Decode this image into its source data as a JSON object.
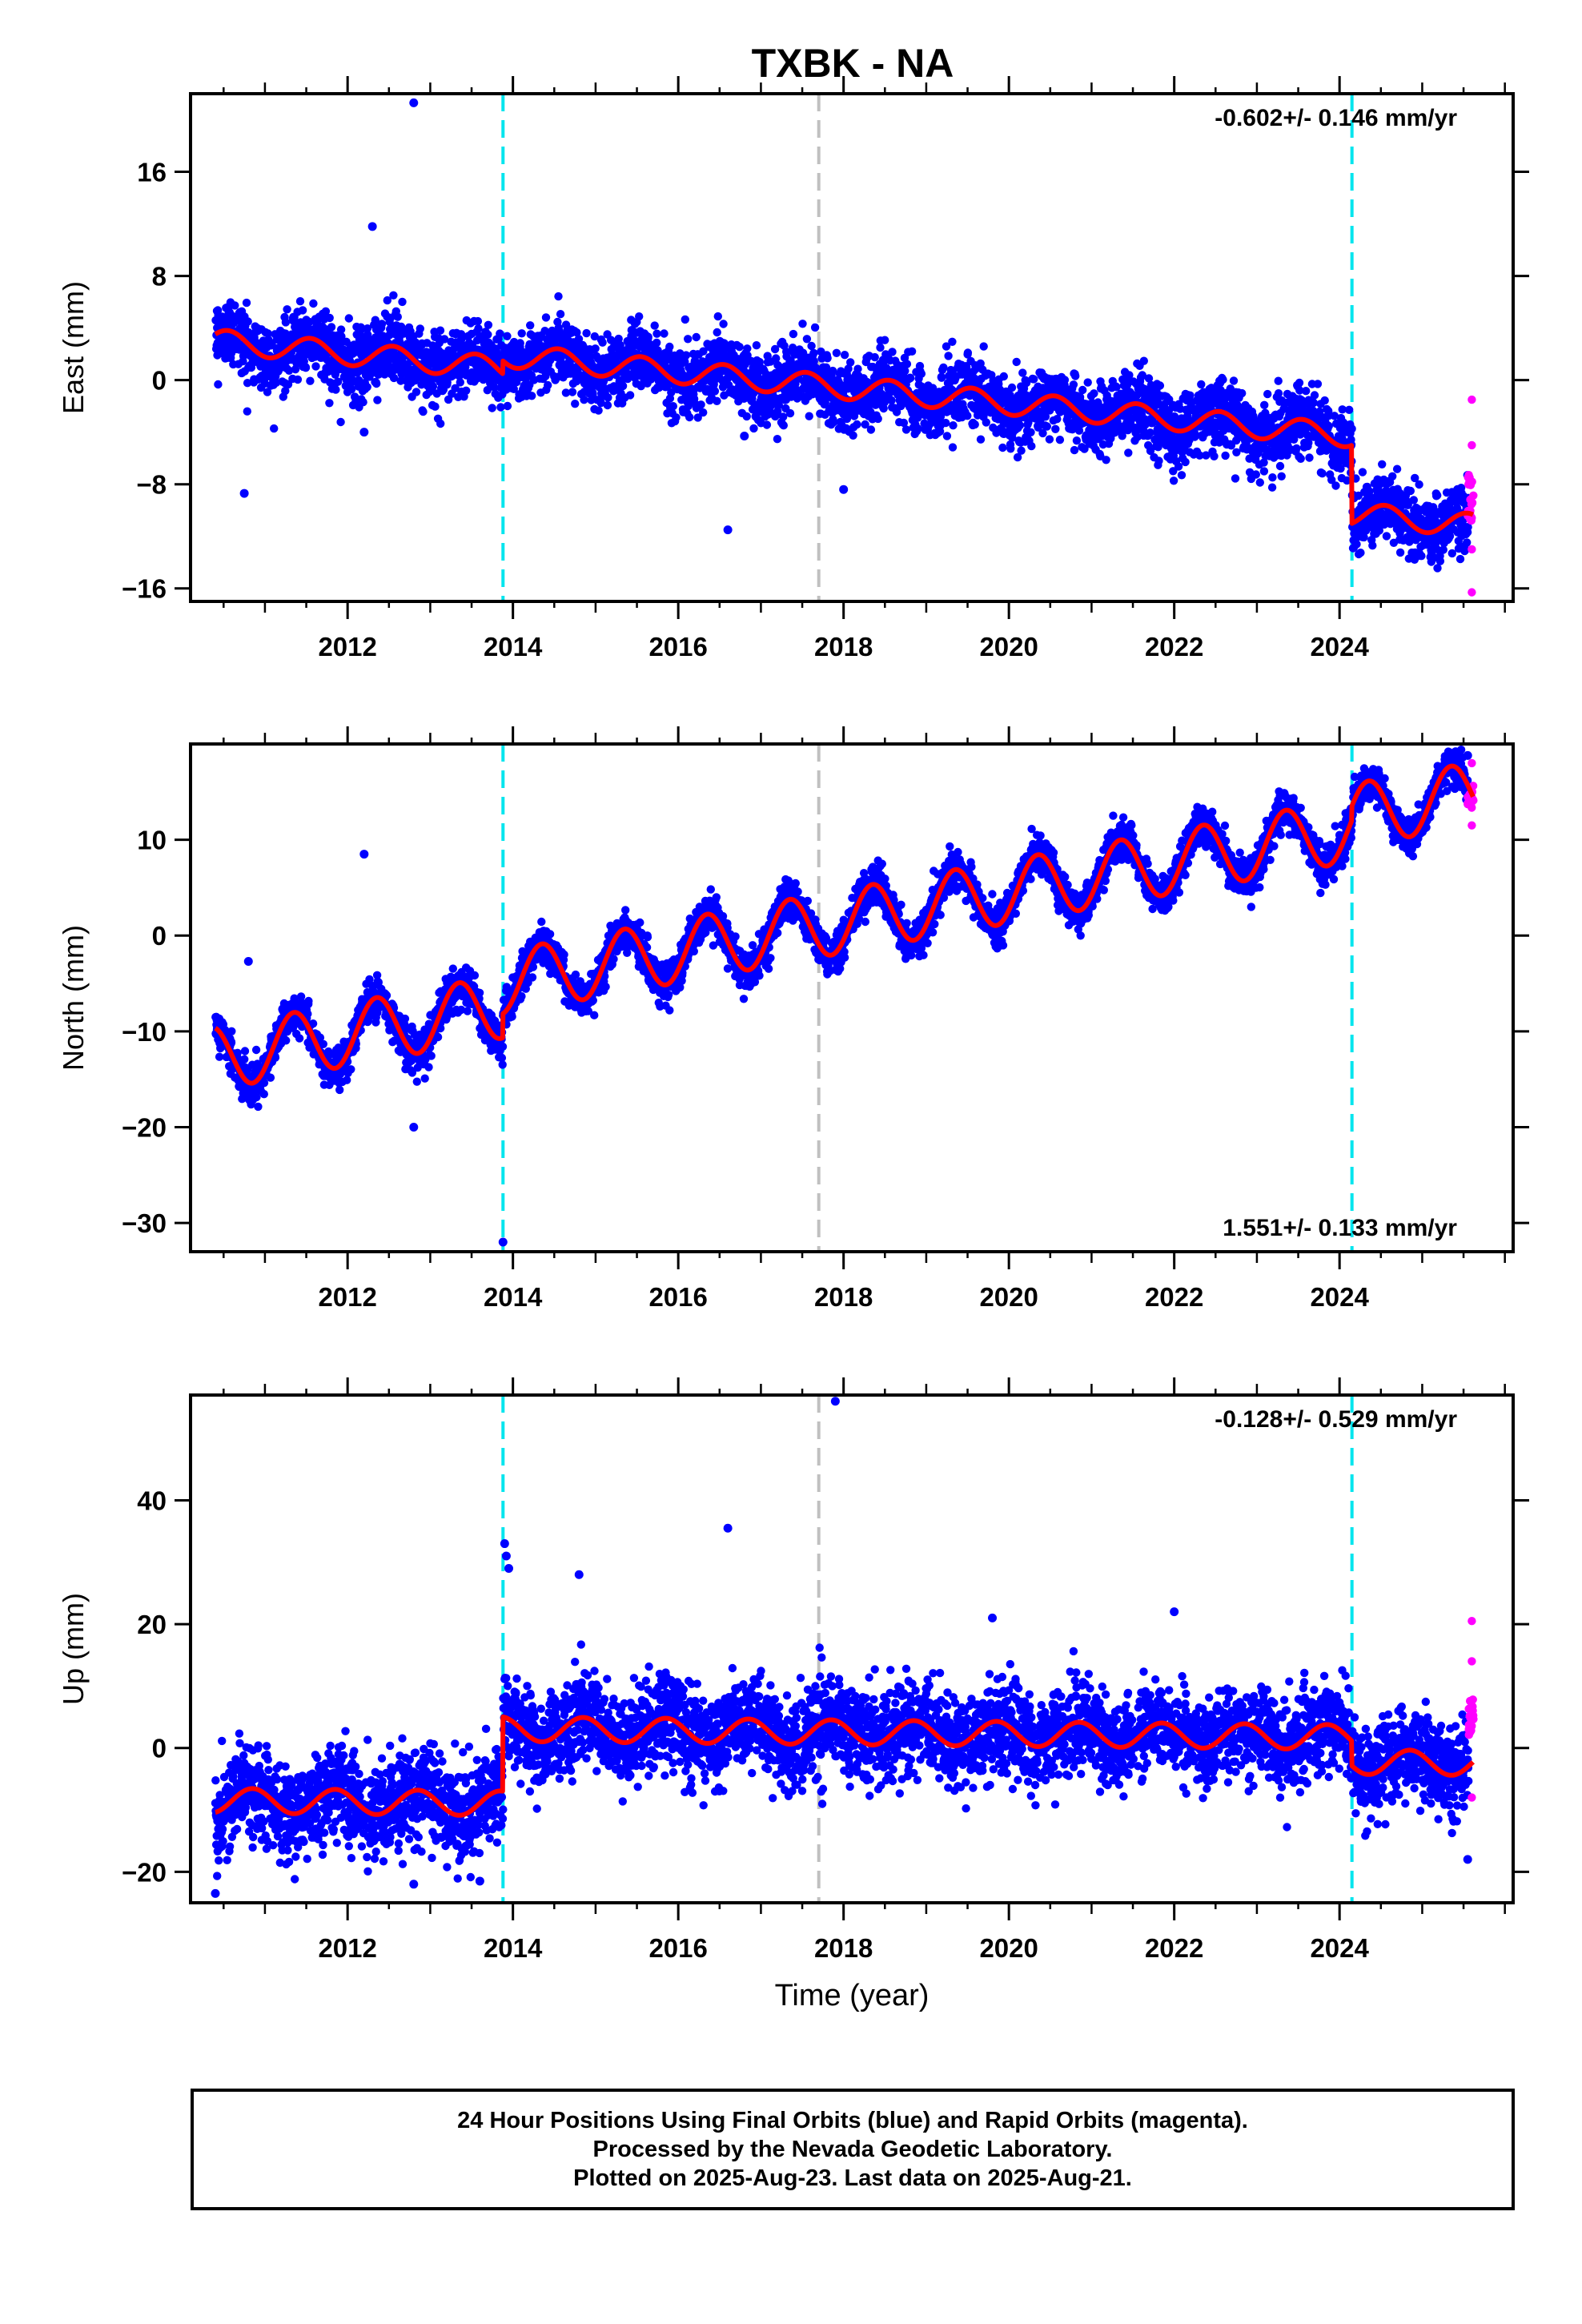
{
  "title": "TXBK - NA",
  "footer": {
    "line1": "24 Hour Positions Using Final Orbits (blue) and Rapid Orbits (magenta).",
    "line2": "Processed by the Nevada Geodetic Laboratory.",
    "line3": "Plotted on 2025-Aug-23. Last data on 2025-Aug-21."
  },
  "colors": {
    "final_orbits": "#0000ff",
    "rapid_orbits": "#ff00ff",
    "model": "#ff0000",
    "equipment_change": "#00e5ee",
    "other_event": "#c0c0c0"
  },
  "chart_data": [
    {
      "type": "scatter",
      "component": "east",
      "ylabel": "East (mm)",
      "xlabel": "",
      "xlim": [
        2010.1,
        2026.1
      ],
      "ylim": [
        -17,
        22
      ],
      "yticks": [
        -16,
        -8,
        0,
        8,
        16
      ],
      "xticks": [
        2012,
        2014,
        2016,
        2018,
        2020,
        2022,
        2024
      ],
      "rate_label": "-0.602+/- 0.146 mm/yr",
      "rate_position": "top-right",
      "events": [
        {
          "x": 2013.88,
          "kind": "equipment_change"
        },
        {
          "x": 2017.7,
          "kind": "other_event"
        },
        {
          "x": 2024.15,
          "kind": "equipment_change"
        }
      ],
      "model": {
        "start": 2010.4,
        "end": 2025.62,
        "intercept": 3.0,
        "ref": 2010.4,
        "rate": -0.602,
        "amp": 0.9,
        "phase": 0.3,
        "steps": [
          {
            "x": 2013.88,
            "dy": 1.0
          },
          {
            "x": 2024.15,
            "dy": -6.0
          }
        ]
      },
      "noise": 1.3,
      "outliers": [
        [
          2012.8,
          21.3
        ],
        [
          2012.3,
          11.8
        ],
        [
          2010.75,
          -8.7
        ],
        [
          2016.6,
          -11.5
        ],
        [
          2018.0,
          -8.4
        ],
        [
          2012.2,
          -4.0
        ],
        [
          2016.8,
          -4.3
        ]
      ],
      "rapid": {
        "start": 2025.55,
        "end": 2025.62,
        "center": -9.0,
        "spread": 3.6,
        "extremes": [
          -1.5,
          -13.0,
          -16.3,
          -5.0
        ]
      }
    },
    {
      "type": "scatter",
      "component": "north",
      "ylabel": "North (mm)",
      "xlabel": "",
      "xlim": [
        2010.1,
        2026.1
      ],
      "ylim": [
        -33,
        20
      ],
      "yticks": [
        -30,
        -20,
        -10,
        0,
        10
      ],
      "xticks": [
        2012,
        2014,
        2016,
        2018,
        2020,
        2022,
        2024
      ],
      "rate_label": "1.551+/- 0.133 mm/yr",
      "rate_position": "bottom-right",
      "events": [
        {
          "x": 2013.88,
          "kind": "equipment_change"
        },
        {
          "x": 2017.7,
          "kind": "other_event"
        },
        {
          "x": 2024.15,
          "kind": "equipment_change"
        }
      ],
      "model": {
        "start": 2010.4,
        "end": 2025.62,
        "intercept": -12.8,
        "ref": 2010.4,
        "rate": 1.551,
        "amp": 3.3,
        "phase": 0.1,
        "steps": [
          {
            "x": 2013.88,
            "dy": 2.5
          },
          {
            "x": 2024.15,
            "dy": 1.5
          }
        ]
      },
      "noise": 1.0,
      "outliers": [
        [
          2012.2,
          8.5
        ],
        [
          2012.8,
          -20.0
        ],
        [
          2013.88,
          -32.0
        ],
        [
          2010.8,
          -2.7
        ],
        [
          2025.55,
          18.8
        ]
      ],
      "rapid": {
        "start": 2025.55,
        "end": 2025.62,
        "center": 14.5,
        "spread": 2.6,
        "extremes": [
          11.5,
          18.0
        ]
      }
    },
    {
      "type": "scatter",
      "component": "up",
      "ylabel": "Up (mm)",
      "xlabel": "Time (year)",
      "xlim": [
        2010.1,
        2026.1
      ],
      "ylim": [
        -25,
        57
      ],
      "yticks": [
        -20,
        0,
        20,
        40
      ],
      "xticks": [
        2012,
        2014,
        2016,
        2018,
        2020,
        2022,
        2024
      ],
      "rate_label": "-0.128+/- 0.529 mm/yr",
      "rate_position": "top-right",
      "events": [
        {
          "x": 2013.88,
          "kind": "equipment_change"
        },
        {
          "x": 2017.7,
          "kind": "other_event"
        },
        {
          "x": 2024.15,
          "kind": "equipment_change"
        }
      ],
      "model": {
        "start": 2010.4,
        "end": 2025.62,
        "intercept": -8.5,
        "ref": 2010.4,
        "rate": -0.128,
        "amp": 2.0,
        "phase": 0.6,
        "steps": [
          {
            "x": 2013.88,
            "dy": 12.0
          },
          {
            "x": 2024.15,
            "dy": -4.0
          }
        ]
      },
      "noise": 3.6,
      "outliers": [
        [
          2017.9,
          56.0
        ],
        [
          2016.6,
          35.5
        ],
        [
          2013.9,
          33.0
        ],
        [
          2013.92,
          31.0
        ],
        [
          2013.95,
          29.0
        ],
        [
          2014.8,
          28.0
        ],
        [
          2022.0,
          22.0
        ],
        [
          2019.8,
          21.0
        ],
        [
          2010.4,
          -23.5
        ],
        [
          2012.8,
          -22.0
        ],
        [
          2013.6,
          -21.5
        ],
        [
          2025.55,
          -18.0
        ]
      ],
      "rapid": {
        "start": 2025.55,
        "end": 2025.62,
        "center": 5.0,
        "spread": 6.0,
        "extremes": [
          20.5,
          14.0,
          -8.0
        ]
      }
    }
  ]
}
